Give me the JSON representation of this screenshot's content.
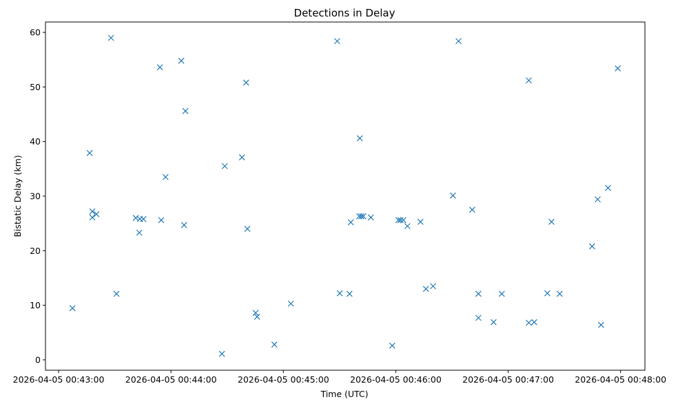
{
  "chart_data": {
    "type": "scatter",
    "title": "Detections in Delay",
    "xlabel": "Time (UTC)",
    "ylabel": "Bistatic Delay (km)",
    "marker": "x",
    "color": "#1f77b4",
    "x_units": "seconds after 2026-04-05 00:43:00",
    "xlim": [
      -7,
      313
    ],
    "ylim": [
      -1.9,
      61.9
    ],
    "grid": false,
    "xticks": [
      {
        "value": 0,
        "label": "2026-04-05 00:43:00"
      },
      {
        "value": 60,
        "label": "2026-04-05 00:44:00"
      },
      {
        "value": 120,
        "label": "2026-04-05 00:45:00"
      },
      {
        "value": 180,
        "label": "2026-04-05 00:46:00"
      },
      {
        "value": 240,
        "label": "2026-04-05 00:47:00"
      },
      {
        "value": 300,
        "label": "2026-04-05 00:48:00"
      }
    ],
    "yticks": [
      {
        "value": 0,
        "label": "0"
      },
      {
        "value": 10,
        "label": "10"
      },
      {
        "value": 20,
        "label": "20"
      },
      {
        "value": 30,
        "label": "30"
      },
      {
        "value": 40,
        "label": "40"
      },
      {
        "value": 50,
        "label": "50"
      },
      {
        "value": 60,
        "label": "60"
      }
    ],
    "points": [
      [
        7.4,
        9.45
      ],
      [
        16.6,
        37.9
      ],
      [
        18.0,
        27.2
      ],
      [
        18.0,
        26.1
      ],
      [
        20.2,
        26.7
      ],
      [
        28.0,
        59.0
      ],
      [
        30.9,
        12.1
      ],
      [
        41.2,
        26.0
      ],
      [
        43.1,
        23.3
      ],
      [
        43.4,
        25.8
      ],
      [
        45.3,
        25.8
      ],
      [
        54.1,
        53.6
      ],
      [
        54.8,
        25.6
      ],
      [
        57.1,
        33.5
      ],
      [
        65.5,
        54.8
      ],
      [
        67.0,
        24.7
      ],
      [
        67.7,
        45.6
      ],
      [
        87.2,
        1.1
      ],
      [
        88.7,
        35.5
      ],
      [
        97.9,
        37.1
      ],
      [
        100.1,
        50.8
      ],
      [
        100.8,
        24.0
      ],
      [
        105.2,
        8.6
      ],
      [
        106.0,
        7.9
      ],
      [
        115.2,
        2.8
      ],
      [
        124.0,
        10.3
      ],
      [
        148.7,
        58.4
      ],
      [
        150.1,
        12.2
      ],
      [
        155.3,
        12.1
      ],
      [
        156.0,
        25.2
      ],
      [
        160.8,
        40.6
      ],
      [
        160.5,
        26.3
      ],
      [
        161.6,
        26.3
      ],
      [
        162.7,
        26.3
      ],
      [
        166.7,
        26.1
      ],
      [
        178.1,
        2.6
      ],
      [
        181.4,
        25.6
      ],
      [
        182.5,
        25.6
      ],
      [
        184.0,
        25.6
      ],
      [
        186.2,
        24.5
      ],
      [
        193.2,
        25.3
      ],
      [
        196.1,
        13.0
      ],
      [
        199.9,
        13.5
      ],
      [
        210.5,
        30.1
      ],
      [
        213.5,
        58.4
      ],
      [
        220.8,
        27.5
      ],
      [
        224.1,
        12.1
      ],
      [
        224.1,
        7.7
      ],
      [
        232.2,
        6.9
      ],
      [
        236.6,
        12.1
      ],
      [
        251.0,
        51.2
      ],
      [
        251.0,
        6.8
      ],
      [
        253.9,
        6.9
      ],
      [
        260.9,
        12.2
      ],
      [
        263.1,
        25.3
      ],
      [
        267.5,
        12.1
      ],
      [
        284.8,
        20.8
      ],
      [
        287.8,
        29.4
      ],
      [
        289.6,
        6.4
      ],
      [
        293.3,
        31.5
      ],
      [
        298.5,
        53.4
      ]
    ]
  }
}
